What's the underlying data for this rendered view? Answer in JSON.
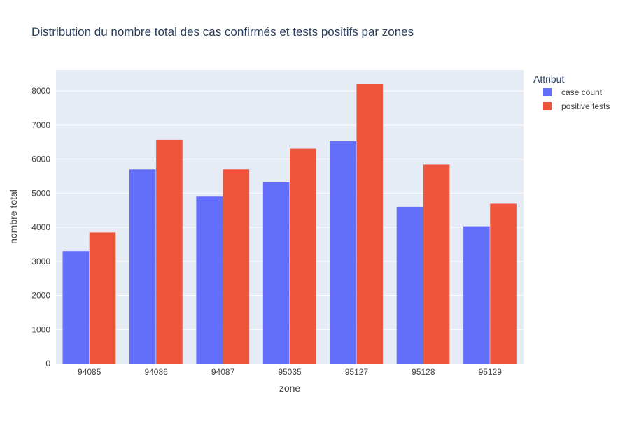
{
  "chart_data": {
    "type": "bar",
    "title": "Distribution du nombre total des cas confirmés et tests positifs par zones",
    "xlabel": "zone",
    "ylabel": "nombre total",
    "categories": [
      "94085",
      "94086",
      "94087",
      "95035",
      "95127",
      "95128",
      "95129"
    ],
    "series": [
      {
        "name": "case count",
        "values": [
          3300,
          5700,
          4900,
          5320,
          6530,
          4600,
          4030
        ]
      },
      {
        "name": "positive tests",
        "values": [
          3850,
          6570,
          5700,
          6310,
          8210,
          5840,
          4690
        ]
      }
    ],
    "ylim": [
      0,
      8620
    ],
    "yticks": [
      0,
      1000,
      2000,
      3000,
      4000,
      5000,
      6000,
      7000,
      8000
    ],
    "grid": true,
    "legend_title": "Attribut",
    "legend_position": "top-right",
    "colors": {
      "series": [
        "#636efa",
        "#ef553b"
      ],
      "plot_background": "#e5ecf6",
      "grid": "#ffffff",
      "text": "#444444",
      "title": "#2a3f5f"
    }
  }
}
